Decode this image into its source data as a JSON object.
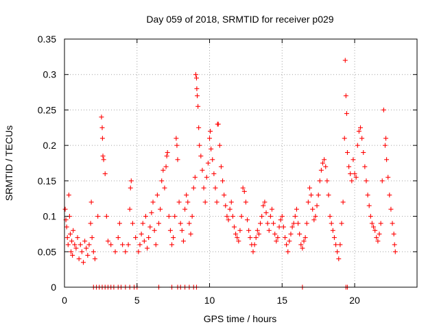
{
  "chart_data": {
    "type": "scatter",
    "title": "Day 059 of 2018, SRMTID for receiver p029",
    "xlabel": "GPS time / hours",
    "ylabel": "SRMTID / TECUs",
    "xlim": [
      0,
      24.3
    ],
    "ylim": [
      0,
      0.35
    ],
    "x_ticks": [
      0,
      5,
      10,
      15,
      20
    ],
    "y_ticks": [
      0,
      0.05,
      0.1,
      0.15,
      0.2,
      0.25,
      0.3,
      0.35
    ],
    "x_tick_labels": [
      "0",
      "5",
      "10",
      "15",
      "20"
    ],
    "y_tick_labels": [
      "0",
      "0.05",
      "0.1",
      "0.15",
      "0.2",
      "0.25",
      "0.3",
      "0.35"
    ],
    "grid": true,
    "marker": "+",
    "color": "#ff0000",
    "series": [
      {
        "name": "SRMTID",
        "points": [
          [
            0.05,
            0.11
          ],
          [
            0.1,
            0.095
          ],
          [
            0.15,
            0.085
          ],
          [
            0.2,
            0.07
          ],
          [
            0.25,
            0.06
          ],
          [
            0.3,
            0.13
          ],
          [
            0.35,
            0.1
          ],
          [
            0.4,
            0.075
          ],
          [
            0.45,
            0.05
          ],
          [
            0.5,
            0.065
          ],
          [
            0.55,
            0.045
          ],
          [
            0.6,
            0.08
          ],
          [
            0.7,
            0.06
          ],
          [
            0.8,
            0.055
          ],
          [
            0.9,
            0.07
          ],
          [
            1.0,
            0.04
          ],
          [
            1.1,
            0.06
          ],
          [
            1.2,
            0.05
          ],
          [
            1.3,
            0.035
          ],
          [
            1.4,
            0.065
          ],
          [
            1.5,
            0.055
          ],
          [
            1.6,
            0.045
          ],
          [
            1.7,
            0.06
          ],
          [
            1.8,
            0.09
          ],
          [
            1.85,
            0.12
          ],
          [
            1.9,
            0.07
          ],
          [
            2.0,
            0.05
          ],
          [
            2.1,
            0.04
          ],
          [
            2.3,
            0.1
          ],
          [
            2.55,
            0.24
          ],
          [
            2.6,
            0.225
          ],
          [
            2.62,
            0.21
          ],
          [
            2.65,
            0.185
          ],
          [
            2.7,
            0.18
          ],
          [
            2.8,
            0.16
          ],
          [
            2.9,
            0.1
          ],
          [
            3.0,
            0.065
          ],
          [
            3.2,
            0.06
          ],
          [
            3.5,
            0.05
          ],
          [
            3.7,
            0.07
          ],
          [
            3.8,
            0.09
          ],
          [
            4.0,
            0.06
          ],
          [
            4.2,
            0.05
          ],
          [
            4.4,
            0.06
          ],
          [
            4.5,
            0.11
          ],
          [
            4.55,
            0.14
          ],
          [
            4.6,
            0.15
          ],
          [
            4.7,
            0.09
          ],
          [
            4.9,
            0.07
          ],
          [
            5.1,
            0.05
          ],
          [
            5.2,
            0.06
          ],
          [
            5.3,
            0.075
          ],
          [
            5.4,
            0.09
          ],
          [
            5.5,
            0.065
          ],
          [
            5.6,
            0.1
          ],
          [
            5.7,
            0.055
          ],
          [
            5.8,
            0.07
          ],
          [
            5.9,
            0.085
          ],
          [
            6.0,
            0.105
          ],
          [
            6.1,
            0.12
          ],
          [
            6.2,
            0.08
          ],
          [
            6.3,
            0.06
          ],
          [
            6.4,
            0.13
          ],
          [
            6.5,
            0.09
          ],
          [
            6.6,
            0.11
          ],
          [
            6.7,
            0.15
          ],
          [
            6.8,
            0.165
          ],
          [
            6.9,
            0.14
          ],
          [
            7.0,
            0.17
          ],
          [
            7.05,
            0.185
          ],
          [
            7.1,
            0.19
          ],
          [
            7.2,
            0.1
          ],
          [
            7.3,
            0.08
          ],
          [
            7.4,
            0.06
          ],
          [
            7.5,
            0.07
          ],
          [
            7.6,
            0.1
          ],
          [
            7.7,
            0.21
          ],
          [
            7.75,
            0.2
          ],
          [
            7.8,
            0.18
          ],
          [
            7.9,
            0.12
          ],
          [
            8.0,
            0.09
          ],
          [
            8.1,
            0.08
          ],
          [
            8.2,
            0.065
          ],
          [
            8.3,
            0.11
          ],
          [
            8.4,
            0.13
          ],
          [
            8.5,
            0.12
          ],
          [
            8.6,
            0.09
          ],
          [
            8.7,
            0.075
          ],
          [
            8.8,
            0.1
          ],
          [
            8.9,
            0.14
          ],
          [
            9.0,
            0.155
          ],
          [
            9.05,
            0.3
          ],
          [
            9.1,
            0.295
          ],
          [
            9.12,
            0.28
          ],
          [
            9.15,
            0.27
          ],
          [
            9.2,
            0.255
          ],
          [
            9.25,
            0.225
          ],
          [
            9.3,
            0.2
          ],
          [
            9.4,
            0.185
          ],
          [
            9.5,
            0.165
          ],
          [
            9.6,
            0.14
          ],
          [
            9.7,
            0.12
          ],
          [
            9.8,
            0.155
          ],
          [
            9.9,
            0.175
          ],
          [
            10.0,
            0.21
          ],
          [
            10.05,
            0.22
          ],
          [
            10.1,
            0.195
          ],
          [
            10.2,
            0.18
          ],
          [
            10.3,
            0.16
          ],
          [
            10.4,
            0.14
          ],
          [
            10.5,
            0.12
          ],
          [
            10.55,
            0.23
          ],
          [
            10.6,
            0.23
          ],
          [
            10.7,
            0.2
          ],
          [
            10.8,
            0.17
          ],
          [
            10.9,
            0.15
          ],
          [
            11.0,
            0.13
          ],
          [
            11.1,
            0.115
          ],
          [
            11.2,
            0.1
          ],
          [
            11.3,
            0.095
          ],
          [
            11.4,
            0.11
          ],
          [
            11.5,
            0.12
          ],
          [
            11.6,
            0.1
          ],
          [
            11.7,
            0.085
          ],
          [
            11.8,
            0.075
          ],
          [
            11.9,
            0.07
          ],
          [
            12.0,
            0.065
          ],
          [
            12.1,
            0.08
          ],
          [
            12.2,
            0.1
          ],
          [
            12.3,
            0.14
          ],
          [
            12.4,
            0.135
          ],
          [
            12.5,
            0.12
          ],
          [
            12.6,
            0.095
          ],
          [
            12.7,
            0.08
          ],
          [
            12.8,
            0.07
          ],
          [
            12.9,
            0.06
          ],
          [
            13.0,
            0.05
          ],
          [
            13.1,
            0.06
          ],
          [
            13.2,
            0.07
          ],
          [
            13.3,
            0.08
          ],
          [
            13.4,
            0.075
          ],
          [
            13.5,
            0.09
          ],
          [
            13.6,
            0.1
          ],
          [
            13.7,
            0.115
          ],
          [
            13.8,
            0.12
          ],
          [
            13.9,
            0.105
          ],
          [
            14.0,
            0.09
          ],
          [
            14.1,
            0.08
          ],
          [
            14.2,
            0.1
          ],
          [
            14.3,
            0.11
          ],
          [
            14.4,
            0.09
          ],
          [
            14.5,
            0.075
          ],
          [
            14.6,
            0.065
          ],
          [
            14.7,
            0.07
          ],
          [
            14.8,
            0.085
          ],
          [
            14.9,
            0.095
          ],
          [
            15.0,
            0.1
          ],
          [
            15.1,
            0.085
          ],
          [
            15.2,
            0.07
          ],
          [
            15.3,
            0.06
          ],
          [
            15.4,
            0.05
          ],
          [
            15.5,
            0.065
          ],
          [
            15.6,
            0.075
          ],
          [
            15.7,
            0.085
          ],
          [
            15.8,
            0.09
          ],
          [
            15.9,
            0.1
          ],
          [
            16.0,
            0.11
          ],
          [
            16.1,
            0.09
          ],
          [
            16.2,
            0.075
          ],
          [
            16.3,
            0.06
          ],
          [
            16.4,
            0.055
          ],
          [
            16.5,
            0.065
          ],
          [
            16.6,
            0.07
          ],
          [
            16.7,
            0.09
          ],
          [
            16.8,
            0.12
          ],
          [
            16.9,
            0.14
          ],
          [
            17.0,
            0.13
          ],
          [
            17.1,
            0.11
          ],
          [
            17.2,
            0.095
          ],
          [
            17.3,
            0.1
          ],
          [
            17.4,
            0.115
          ],
          [
            17.5,
            0.13
          ],
          [
            17.6,
            0.15
          ],
          [
            17.7,
            0.165
          ],
          [
            17.8,
            0.175
          ],
          [
            17.9,
            0.18
          ],
          [
            18.0,
            0.17
          ],
          [
            18.1,
            0.15
          ],
          [
            18.2,
            0.13
          ],
          [
            18.3,
            0.1
          ],
          [
            18.4,
            0.09
          ],
          [
            18.5,
            0.08
          ],
          [
            18.6,
            0.07
          ],
          [
            18.7,
            0.06
          ],
          [
            18.8,
            0.05
          ],
          [
            18.9,
            0.04
          ],
          [
            19.0,
            0.06
          ],
          [
            19.1,
            0.09
          ],
          [
            19.2,
            0.12
          ],
          [
            19.3,
            0.21
          ],
          [
            19.35,
            0.32
          ],
          [
            19.4,
            0.27
          ],
          [
            19.45,
            0.245
          ],
          [
            19.5,
            0.19
          ],
          [
            19.6,
            0.17
          ],
          [
            19.7,
            0.16
          ],
          [
            19.8,
            0.15
          ],
          [
            19.9,
            0.18
          ],
          [
            20.0,
            0.16
          ],
          [
            20.1,
            0.155
          ],
          [
            20.2,
            0.2
          ],
          [
            20.3,
            0.22
          ],
          [
            20.4,
            0.225
          ],
          [
            20.5,
            0.21
          ],
          [
            20.6,
            0.19
          ],
          [
            20.7,
            0.17
          ],
          [
            20.8,
            0.15
          ],
          [
            20.9,
            0.13
          ],
          [
            21.0,
            0.115
          ],
          [
            21.1,
            0.1
          ],
          [
            21.2,
            0.09
          ],
          [
            21.3,
            0.085
          ],
          [
            21.4,
            0.08
          ],
          [
            21.5,
            0.07
          ],
          [
            21.6,
            0.065
          ],
          [
            21.7,
            0.075
          ],
          [
            21.8,
            0.09
          ],
          [
            21.9,
            0.15
          ],
          [
            22.0,
            0.25
          ],
          [
            22.1,
            0.2
          ],
          [
            22.15,
            0.21
          ],
          [
            22.2,
            0.18
          ],
          [
            22.3,
            0.155
          ],
          [
            22.4,
            0.13
          ],
          [
            22.5,
            0.11
          ],
          [
            22.6,
            0.09
          ],
          [
            22.7,
            0.075
          ],
          [
            22.75,
            0.06
          ],
          [
            22.8,
            0.05
          ],
          [
            2.0,
            0
          ],
          [
            2.2,
            0
          ],
          [
            2.4,
            0
          ],
          [
            2.6,
            0
          ],
          [
            2.8,
            0
          ],
          [
            3.0,
            0
          ],
          [
            3.2,
            0
          ],
          [
            3.4,
            0
          ],
          [
            3.7,
            0
          ],
          [
            3.9,
            0
          ],
          [
            4.2,
            0
          ],
          [
            4.5,
            0
          ],
          [
            4.8,
            0
          ],
          [
            5.0,
            0
          ],
          [
            6.5,
            0
          ],
          [
            7.4,
            0
          ],
          [
            7.8,
            0
          ],
          [
            8.0,
            0
          ],
          [
            8.3,
            0
          ],
          [
            8.6,
            0
          ],
          [
            8.9,
            0
          ],
          [
            9.1,
            0
          ],
          [
            16.4,
            0
          ],
          [
            19.4,
            0
          ],
          [
            19.5,
            0
          ]
        ]
      }
    ]
  }
}
